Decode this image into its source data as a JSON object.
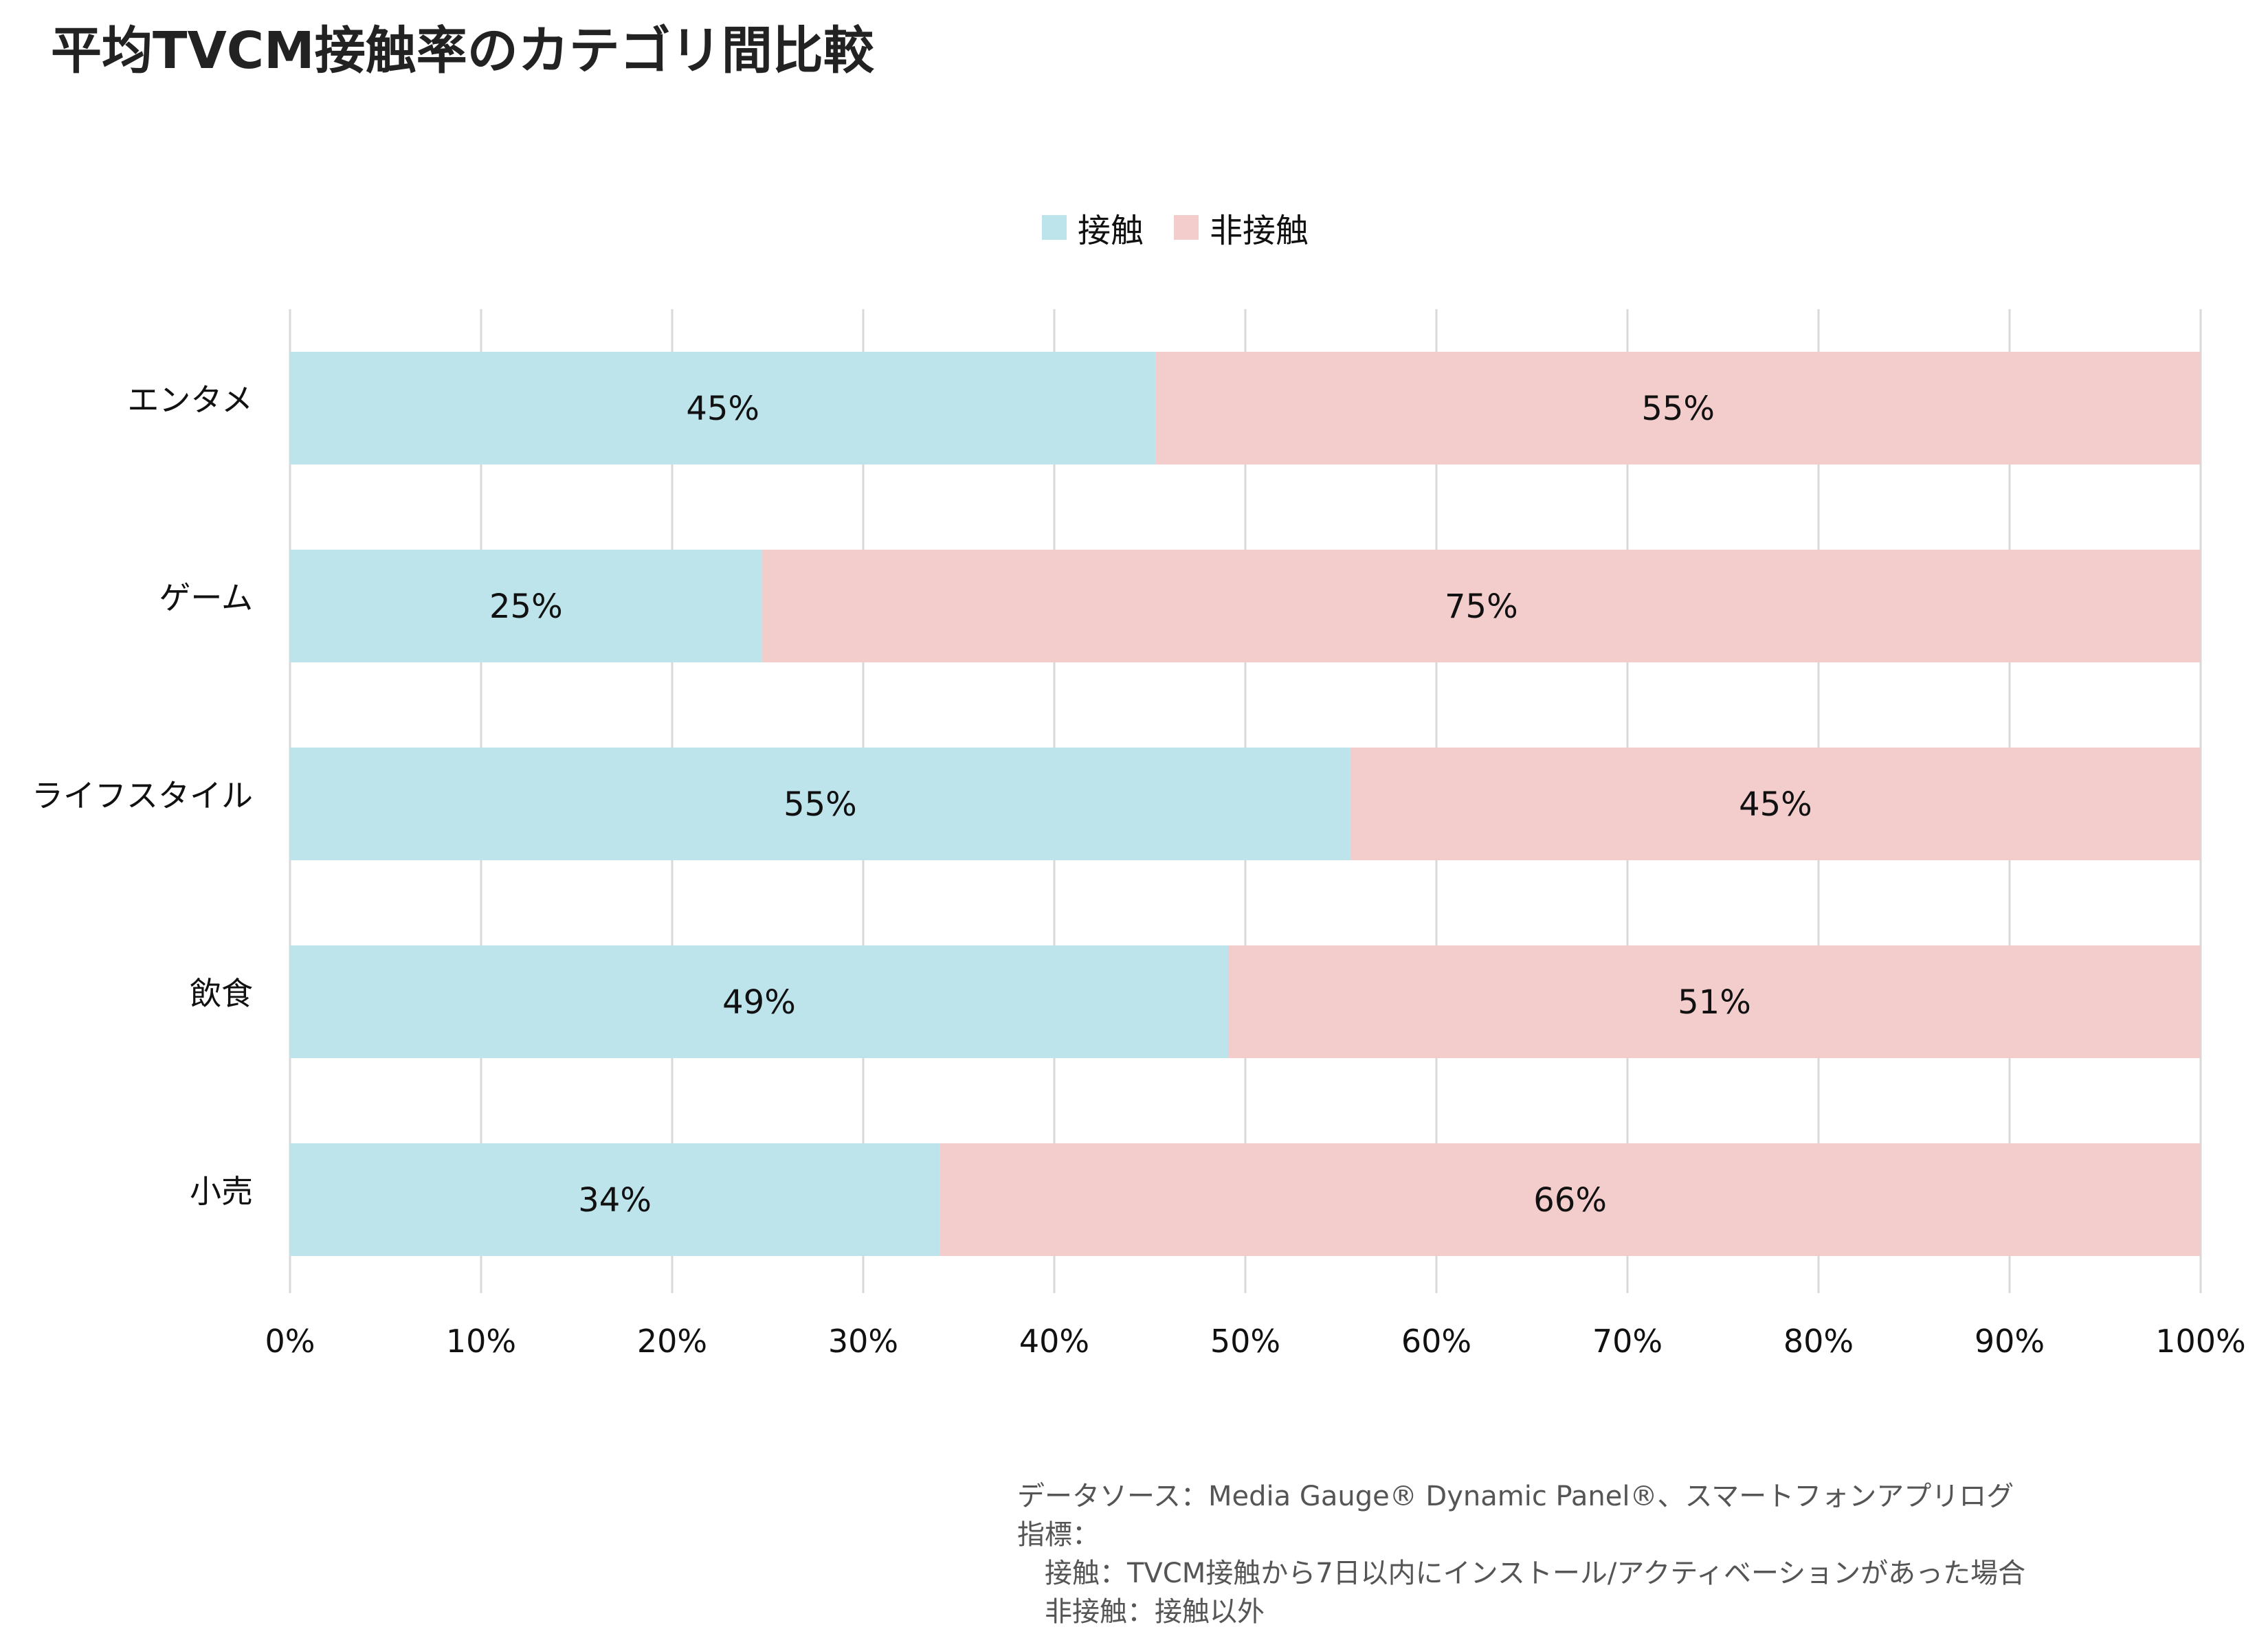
{
  "chart_data": {
    "type": "bar",
    "orientation": "horizontal",
    "stacked": true,
    "title": "平均TVCM接触率のカテゴリ間比較",
    "categories": [
      "エンタメ",
      "ゲーム",
      "ライフスタイル",
      "飲食",
      "小売"
    ],
    "series": [
      {
        "name": "接触",
        "values": [
          45.3,
          24.7,
          55.5,
          49.1,
          34.0
        ],
        "labels": [
          "45%",
          "25%",
          "55%",
          "49%",
          "34%"
        ],
        "color": "#bde3eb"
      },
      {
        "name": "非接触",
        "values": [
          54.7,
          75.3,
          44.5,
          50.9,
          66.0
        ],
        "labels": [
          "55%",
          "75%",
          "45%",
          "51%",
          "66%"
        ],
        "color": "#f3cccc"
      }
    ],
    "xlim": [
      0,
      100
    ],
    "x_ticks": [
      "0%",
      "10%",
      "20%",
      "30%",
      "40%",
      "50%",
      "60%",
      "70%",
      "80%",
      "90%",
      "100%"
    ],
    "grid": true,
    "legend_position": "top-center",
    "xlabel": "",
    "ylabel": ""
  },
  "footnote": {
    "lines": [
      "データソース：Media Gauge® Dynamic Panel®、スマートフォンアプリログ",
      "指標：",
      "　接触：TVCM接触から7日以内にインストール/アクティベーションがあった場合",
      "　非接触：接触以外"
    ]
  }
}
